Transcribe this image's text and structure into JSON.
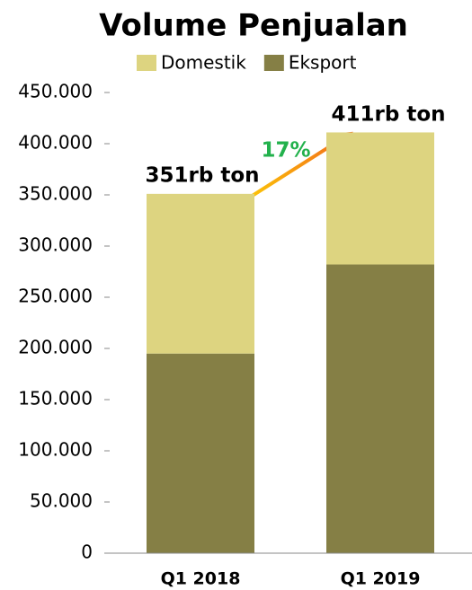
{
  "chart_data": {
    "type": "stacked_bar",
    "title": "Volume Penjualan",
    "categories": [
      "Q1 2018",
      "Q1 2019"
    ],
    "series": [
      {
        "name": "Domestik",
        "color": "#ddd480",
        "values": [
          156000,
          129000
        ]
      },
      {
        "name": "Eksport",
        "color": "#857f45",
        "values": [
          195000,
          282000
        ]
      }
    ],
    "ylim": [
      0,
      450000
    ],
    "yticks": [
      0,
      {
        "value": 50000,
        "label": "50.000"
      },
      {
        "value": 100000,
        "label": "100.000"
      },
      {
        "value": 150000,
        "label": "150.000"
      },
      {
        "value": 200000,
        "label": "200.000"
      },
      {
        "value": 250000,
        "label": "250.000"
      },
      {
        "value": 300000,
        "label": "300.000"
      },
      {
        "value": 350000,
        "label": "350.000"
      },
      {
        "value": 400000,
        "label": "400.000"
      },
      {
        "value": 450000,
        "label": "450.000"
      }
    ],
    "annotations": [
      "351rb ton",
      "411rb ton",
      "17%"
    ],
    "legend": "top"
  }
}
